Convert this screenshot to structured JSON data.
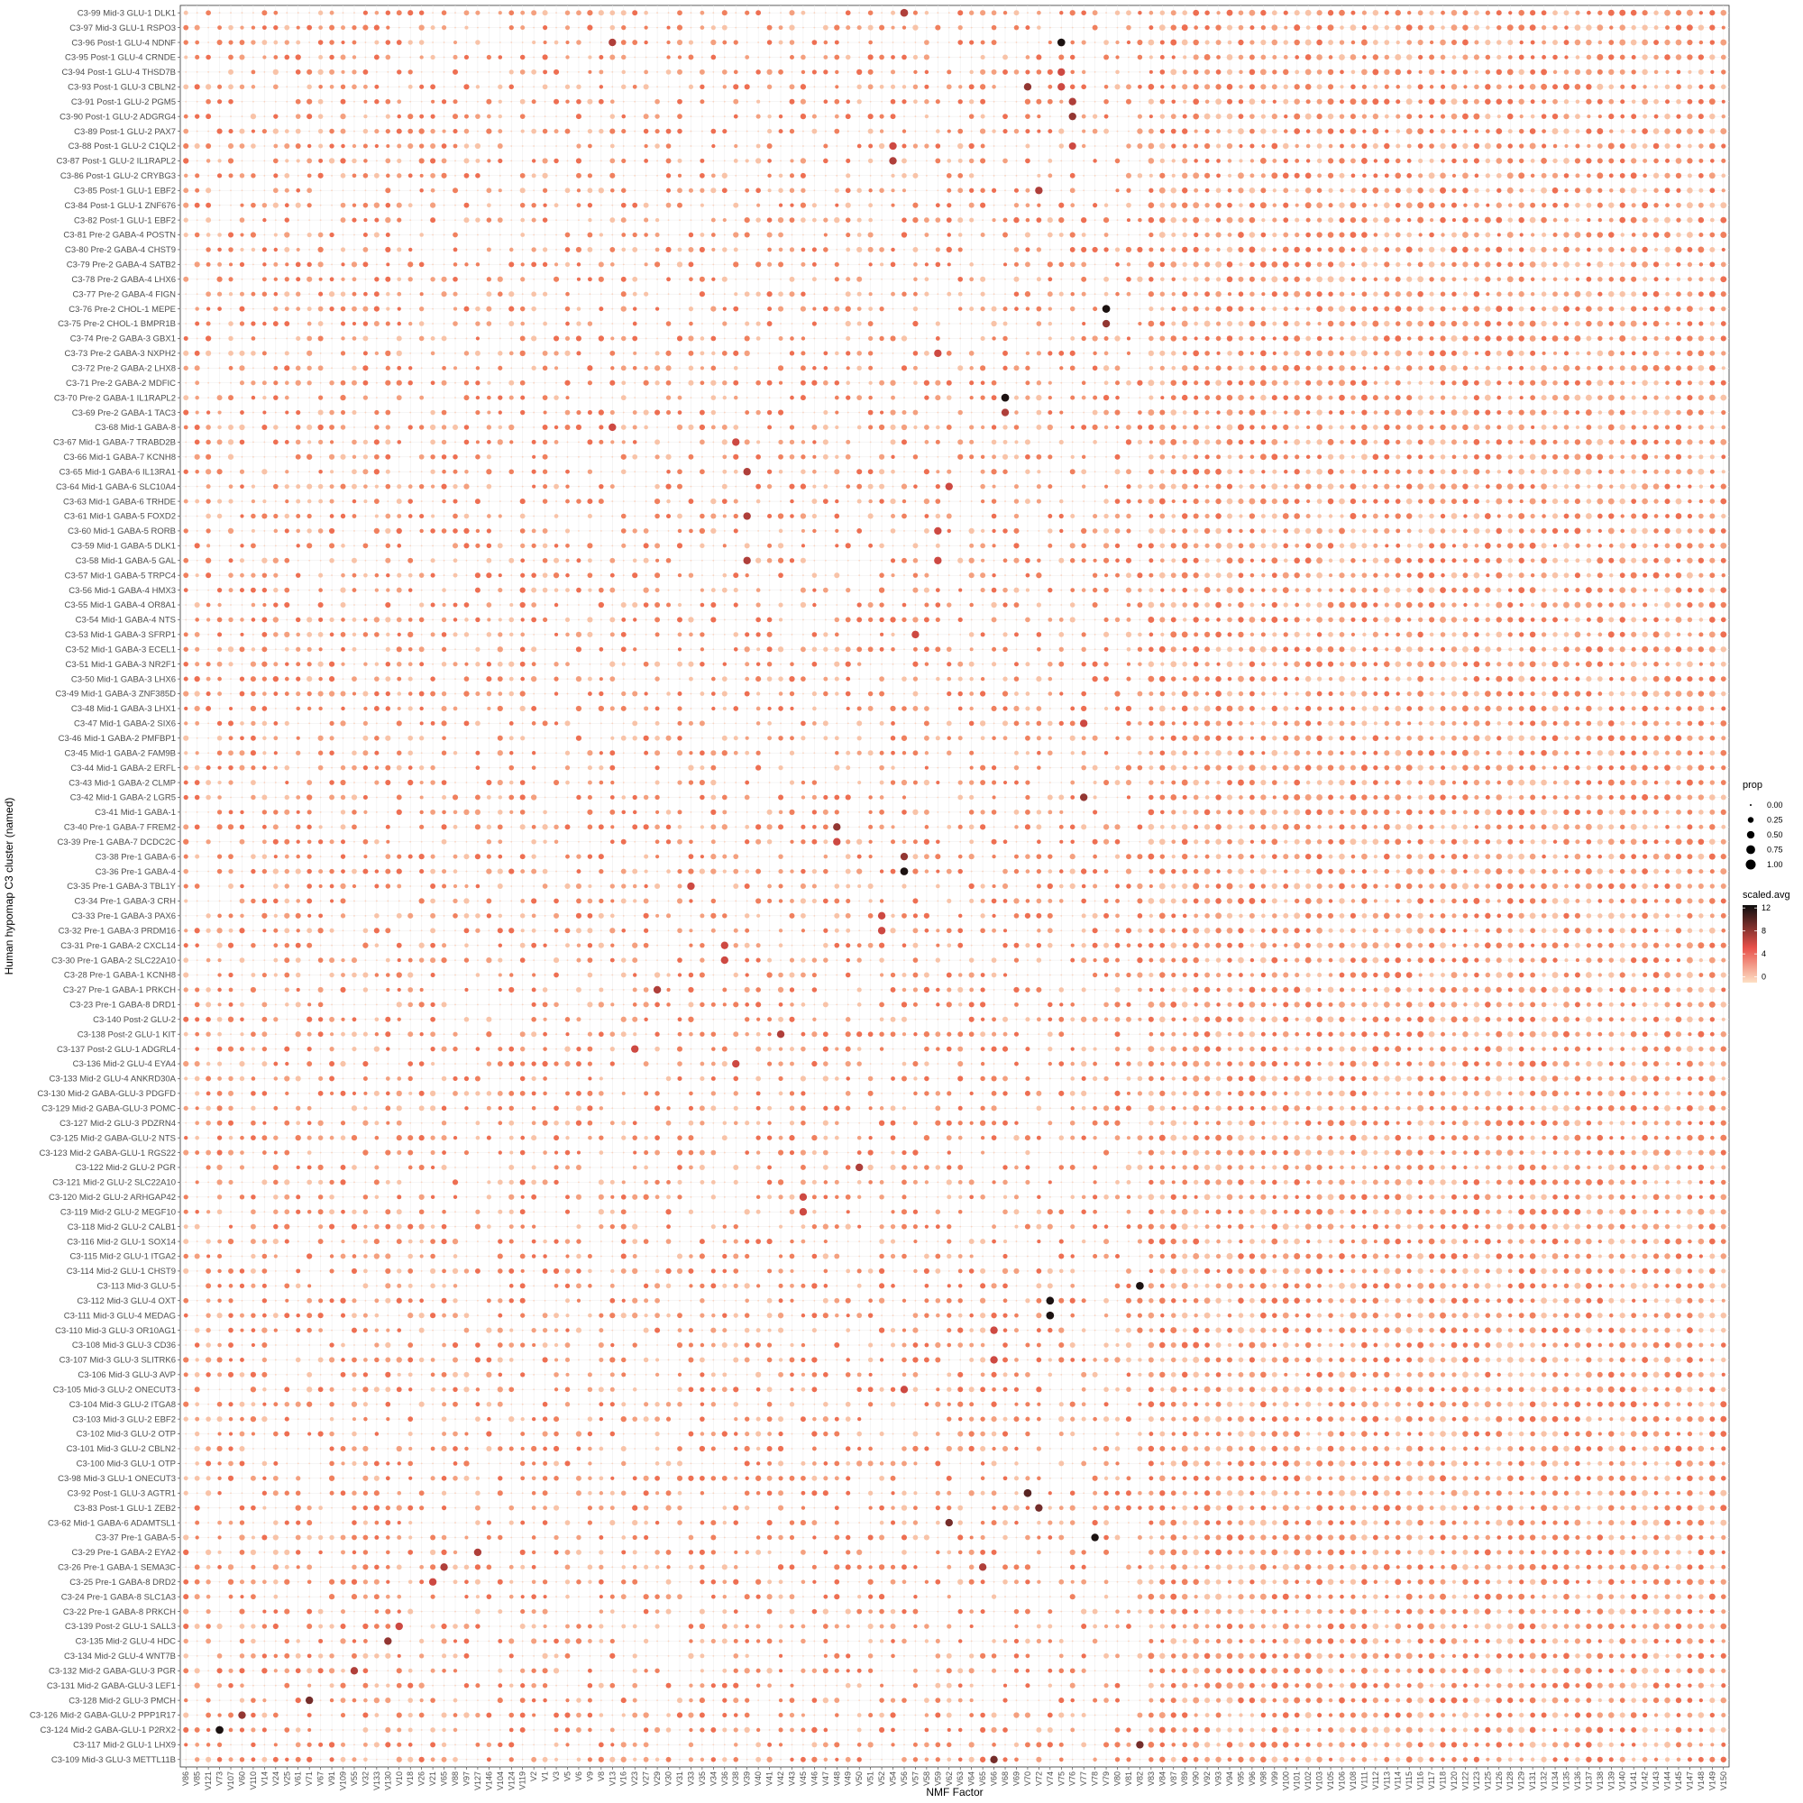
{
  "chart_data": {
    "type": "dot",
    "xlabel": "NMF Factor",
    "ylabel": "Human hypomap C3 cluster (named)",
    "x_categories": [
      "V86",
      "V85",
      "V121",
      "V73",
      "V107",
      "V60",
      "V110",
      "V14",
      "V24",
      "V25",
      "V61",
      "V71",
      "V67",
      "V91",
      "V109",
      "V55",
      "V32",
      "V133",
      "V130",
      "V10",
      "V18",
      "V26",
      "V21",
      "V65",
      "V88",
      "V97",
      "V127",
      "V146",
      "V104",
      "V124",
      "V119",
      "V2",
      "V1",
      "V3",
      "V5",
      "V6",
      "V9",
      "V8",
      "V13",
      "V16",
      "V23",
      "V27",
      "V29",
      "V30",
      "V31",
      "V33",
      "V35",
      "V34",
      "V36",
      "V38",
      "V39",
      "V40",
      "V41",
      "V42",
      "V43",
      "V45",
      "V46",
      "V47",
      "V48",
      "V49",
      "V50",
      "V51",
      "V52",
      "V54",
      "V56",
      "V57",
      "V58",
      "V59",
      "V62",
      "V63",
      "V64",
      "V65",
      "V66",
      "V68",
      "V69",
      "V70",
      "V72",
      "V74",
      "V75",
      "V76",
      "V77",
      "V78",
      "V79",
      "V80",
      "V81",
      "V82",
      "V83",
      "V84",
      "V87",
      "V89",
      "V90",
      "V92",
      "V93",
      "V94",
      "V95",
      "V96",
      "V98",
      "V99",
      "V100",
      "V101",
      "V102",
      "V103",
      "V105",
      "V106",
      "V108",
      "V111",
      "V112",
      "V113",
      "V114",
      "V115",
      "V116",
      "V117",
      "V118",
      "V120",
      "V122",
      "V123",
      "V125",
      "V126",
      "V128",
      "V129",
      "V131",
      "V132",
      "V134",
      "V135",
      "V136",
      "V137",
      "V138",
      "V139",
      "V140",
      "V141",
      "V142",
      "V143",
      "V144",
      "V145",
      "V147",
      "V148",
      "V149",
      "V150"
    ],
    "y_categories": [
      "C3-99 Mid-3 GLU-1 DLK1",
      "C3-97 Mid-3 GLU-1 RSPO3",
      "C3-96 Post-1 GLU-4 NDNF",
      "C3-95 Post-1 GLU-4 CRNDE",
      "C3-94 Post-1 GLU-4 THSD7B",
      "C3-93 Post-1 GLU-3 CBLN2",
      "C3-91 Post-1 GLU-2 PGM5",
      "C3-90 Post-1 GLU-2 ADGRG4",
      "C3-89 Post-1 GLU-2 PAX7",
      "C3-88 Post-1 GLU-2 C1QL2",
      "C3-87 Post-1 GLU-2 IL1RAPL2",
      "C3-86 Post-1 GLU-2 CRYBG3",
      "C3-85 Post-1 GLU-1 EBF2",
      "C3-84 Post-1 GLU-1 ZNF676",
      "C3-82 Post-1 GLU-1 EBF2",
      "C3-81 Pre-2 GABA-4 POSTN",
      "C3-80 Pre-2 GABA-4 CHST9",
      "C3-79 Pre-2 GABA-4 SATB2",
      "C3-78 Pre-2 GABA-4 LHX6",
      "C3-77 Pre-2 GABA-4 FIGN",
      "C3-76 Pre-2 CHOL-1 MEPE",
      "C3-75 Pre-2 CHOL-1 BMPR1B",
      "C3-74 Pre-2 GABA-3 GBX1",
      "C3-73 Pre-2 GABA-3 NXPH2",
      "C3-72 Pre-2 GABA-2 LHX8",
      "C3-71 Pre-2 GABA-2 MDFIC",
      "C3-70 Pre-2 GABA-1 IL1RAPL2",
      "C3-69 Pre-2 GABA-1 TAC3",
      "C3-68 Mid-1 GABA-8",
      "C3-67 Mid-1 GABA-7 TRABD2B",
      "C3-66 Mid-1 GABA-7 KCNH8",
      "C3-65 Mid-1 GABA-6 IL13RA1",
      "C3-64 Mid-1 GABA-6 SLC10A4",
      "C3-63 Mid-1 GABA-6 TRHDE",
      "C3-61 Mid-1 GABA-5 FOXD2",
      "C3-60 Mid-1 GABA-5 RORB",
      "C3-59 Mid-1 GABA-5 DLK1",
      "C3-58 Mid-1 GABA-5 GAL",
      "C3-57 Mid-1 GABA-5 TRPC4",
      "C3-56 Mid-1 GABA-4 HMX3",
      "C3-55 Mid-1 GABA-4 OR8A1",
      "C3-54 Mid-1 GABA-4 NTS",
      "C3-53 Mid-1 GABA-3 SFRP1",
      "C3-52 Mid-1 GABA-3 ECEL1",
      "C3-51 Mid-1 GABA-3 NR2F1",
      "C3-50 Mid-1 GABA-3 LHX6",
      "C3-49 Mid-1 GABA-3 ZNF385D",
      "C3-48 Mid-1 GABA-3 LHX1",
      "C3-47 Mid-1 GABA-2 SIX6",
      "C3-46 Mid-1 GABA-2 PMFBP1",
      "C3-45 Mid-1 GABA-2 FAM9B",
      "C3-44 Mid-1 GABA-2 ERFL",
      "C3-43 Mid-1 GABA-2 CLMP",
      "C3-42 Mid-1 GABA-2 LGR5",
      "C3-41 Mid-1 GABA-1",
      "C3-40 Pre-1 GABA-7 FREM2",
      "C3-39 Pre-1 GABA-7 DCDC2C",
      "C3-38 Pre-1 GABA-6",
      "C3-36 Pre-1 GABA-4",
      "C3-35 Pre-1 GABA-3 TBL1Y",
      "C3-34 Pre-1 GABA-3 CRH",
      "C3-33 Pre-1 GABA-3 PAX6",
      "C3-32 Pre-1 GABA-3 PRDM16",
      "C3-31 Pre-1 GABA-2 CXCL14",
      "C3-30 Pre-1 GABA-2 SLC22A10",
      "C3-28 Pre-1 GABA-1 KCNH8",
      "C3-27 Pre-1 GABA-1 PRKCH",
      "C3-23 Pre-1 GABA-8 DRD1",
      "C3-140 Post-2 GLU-2",
      "C3-138 Post-2 GLU-1 KIT",
      "C3-137 Post-2 GLU-1 ADGRL4",
      "C3-136 Mid-2 GLU-4 EYA4",
      "C3-133 Mid-2 GLU-4 ANKRD30A",
      "C3-130 Mid-2 GABA-GLU-3 PDGFD",
      "C3-129 Mid-2 GABA-GLU-3 POMC",
      "C3-127 Mid-2 GLU-3 PDZRN4",
      "C3-125 Mid-2 GABA-GLU-2 NTS",
      "C3-123 Mid-2 GABA-GLU-1 RGS22",
      "C3-122 Mid-2 GLU-2 PGR",
      "C3-121 Mid-2 GLU-2 SLC22A10",
      "C3-120 Mid-2 GLU-2 ARHGAP42",
      "C3-119 Mid-2 GLU-2 MEGF10",
      "C3-118 Mid-2 GLU-2 CALB1",
      "C3-116 Mid-2 GLU-1 SOX14",
      "C3-115 Mid-2 GLU-1 ITGA2",
      "C3-114 Mid-2 GLU-1 CHST9",
      "C3-113 Mid-3 GLU-5",
      "C3-112 Mid-3 GLU-4 OXT",
      "C3-111 Mid-3 GLU-4 MEDAG",
      "C3-110 Mid-3 GLU-3 OR10AG1",
      "C3-108 Mid-3 GLU-3 CD36",
      "C3-107 Mid-3 GLU-3 SLITRK6",
      "C3-106 Mid-3 GLU-3 AVP",
      "C3-105 Mid-3 GLU-2 ONECUT3",
      "C3-104 Mid-3 GLU-2 ITGA8",
      "C3-103 Mid-3 GLU-2 EBF2",
      "C3-102 Mid-3 GLU-2 OTP",
      "C3-101 Mid-3 GLU-2 CBLN2",
      "C3-100 Mid-3 GLU-1 OTP",
      "C3-98 Mid-3 GLU-1 ONECUT3",
      "C3-92 Post-1 GLU-3 AGTR1",
      "C3-83 Post-1 GLU-1 ZEB2",
      "C3-62 Mid-1 GABA-6 ADAMTSL1",
      "C3-37 Pre-1 GABA-5",
      "C3-29 Pre-1 GABA-2 EYA2",
      "C3-26 Pre-1 GABA-1 SEMA3C",
      "C3-25 Pre-1 GABA-8 DRD2",
      "C3-24 Pre-1 GABA-8 SLC1A3",
      "C3-22 Pre-1 GABA-8 PRKCH",
      "C3-139 Post-2 GLU-1 SALL3",
      "C3-135 Mid-2 GLU-4 HDC",
      "C3-134 Mid-2 GLU-4 WNT7B",
      "C3-132 Mid-2 GABA-GLU-3 PGR",
      "C3-131 Mid-2 GABA-GLU-3 LEF1",
      "C3-128 Mid-2 GLU-3 PMCH",
      "C3-126 Mid-2 GABA-GLU-2 PPP1R17",
      "C3-124 Mid-2 GABA-GLU-1 P2RX2",
      "C3-117 Mid-2 GLU-1 LHX9",
      "C3-109 Mid-3 GLU-3 METTL11B"
    ],
    "highlights": [
      {
        "row": "C3-99 Mid-3 GLU-1 DLK1",
        "factor": "V56",
        "scaled_avg": 7,
        "prop": 0.55
      },
      {
        "row": "C3-96 Post-1 GLU-4 NDNF",
        "factor": "V13",
        "scaled_avg": 7,
        "prop": 0.5
      },
      {
        "row": "C3-96 Post-1 GLU-4 NDNF",
        "factor": "V75",
        "scaled_avg": 12,
        "prop": 0.55
      },
      {
        "row": "C3-94 Post-1 GLU-4 THSD7B",
        "factor": "V75",
        "scaled_avg": 6,
        "prop": 0.5
      },
      {
        "row": "C3-93 Post-1 GLU-3 CBLN2",
        "factor": "V70",
        "scaled_avg": 8,
        "prop": 0.5
      },
      {
        "row": "C3-93 Post-1 GLU-3 CBLN2",
        "factor": "V75",
        "scaled_avg": 6,
        "prop": 0.5
      },
      {
        "row": "C3-91 Post-1 GLU-2 PGM5",
        "factor": "V76",
        "scaled_avg": 7,
        "prop": 0.5
      },
      {
        "row": "C3-90 Post-1 GLU-2 ADGRG4",
        "factor": "V76",
        "scaled_avg": 8,
        "prop": 0.5
      },
      {
        "row": "C3-88 Post-1 GLU-2 C1QL2",
        "factor": "V54",
        "scaled_avg": 6,
        "prop": 0.5
      },
      {
        "row": "C3-88 Post-1 GLU-2 C1QL2",
        "factor": "V76",
        "scaled_avg": 6,
        "prop": 0.45
      },
      {
        "row": "C3-87 Post-1 GLU-2 IL1RAPL2",
        "factor": "V54",
        "scaled_avg": 7,
        "prop": 0.5
      },
      {
        "row": "C3-85 Post-1 GLU-1 EBF2",
        "factor": "V72",
        "scaled_avg": 7,
        "prop": 0.5
      },
      {
        "row": "C3-76 Pre-2 CHOL-1 MEPE",
        "factor": "V79",
        "scaled_avg": 12,
        "prop": 0.55
      },
      {
        "row": "C3-75 Pre-2 CHOL-1 BMPR1B",
        "factor": "V79",
        "scaled_avg": 8,
        "prop": 0.5
      },
      {
        "row": "C3-73 Pre-2 GABA-3 NXPH2",
        "factor": "V59",
        "scaled_avg": 6,
        "prop": 0.5
      },
      {
        "row": "C3-70 Pre-2 GABA-1 IL1RAPL2",
        "factor": "V68",
        "scaled_avg": 12,
        "prop": 0.55
      },
      {
        "row": "C3-69 Pre-2 GABA-1 TAC3",
        "factor": "V68",
        "scaled_avg": 7,
        "prop": 0.5
      },
      {
        "row": "C3-68 Mid-1 GABA-8",
        "factor": "V13",
        "scaled_avg": 6,
        "prop": 0.5
      },
      {
        "row": "C3-67 Mid-1 GABA-7 TRABD2B",
        "factor": "V38",
        "scaled_avg": 6,
        "prop": 0.5
      },
      {
        "row": "C3-65 Mid-1 GABA-6 IL13RA1",
        "factor": "V39",
        "scaled_avg": 7,
        "prop": 0.5
      },
      {
        "row": "C3-64 Mid-1 GABA-6 SLC10A4",
        "factor": "V62",
        "scaled_avg": 6,
        "prop": 0.5
      },
      {
        "row": "C3-61 Mid-1 GABA-5 FOXD2",
        "factor": "V39",
        "scaled_avg": 7,
        "prop": 0.5
      },
      {
        "row": "C3-60 Mid-1 GABA-5 RORB",
        "factor": "V59",
        "scaled_avg": 6,
        "prop": 0.5
      },
      {
        "row": "C3-58 Mid-1 GABA-5 GAL",
        "factor": "V39",
        "scaled_avg": 7,
        "prop": 0.5
      },
      {
        "row": "C3-58 Mid-1 GABA-5 GAL",
        "factor": "V59",
        "scaled_avg": 6,
        "prop": 0.5
      },
      {
        "row": "C3-53 Mid-1 GABA-3 SFRP1",
        "factor": "V57",
        "scaled_avg": 6,
        "prop": 0.5
      },
      {
        "row": "C3-47 Mid-1 GABA-2 SIX6",
        "factor": "V77",
        "scaled_avg": 6,
        "prop": 0.5
      },
      {
        "row": "C3-42 Mid-1 GABA-2 LGR5",
        "factor": "V77",
        "scaled_avg": 8,
        "prop": 0.5
      },
      {
        "row": "C3-40 Pre-1 GABA-7 FREM2",
        "factor": "V48",
        "scaled_avg": 8,
        "prop": 0.5
      },
      {
        "row": "C3-39 Pre-1 GABA-7 DCDC2C",
        "factor": "V48",
        "scaled_avg": 6,
        "prop": 0.5
      },
      {
        "row": "C3-38 Pre-1 GABA-6",
        "factor": "V56",
        "scaled_avg": 8,
        "prop": 0.5
      },
      {
        "row": "C3-36 Pre-1 GABA-4",
        "factor": "V56",
        "scaled_avg": 12,
        "prop": 0.55
      },
      {
        "row": "C3-35 Pre-1 GABA-3 TBL1Y",
        "factor": "V33",
        "scaled_avg": 6,
        "prop": 0.5
      },
      {
        "row": "C3-33 Pre-1 GABA-3 PAX6",
        "factor": "V52",
        "scaled_avg": 6,
        "prop": 0.5
      },
      {
        "row": "C3-32 Pre-1 GABA-3 PRDM16",
        "factor": "V52",
        "scaled_avg": 6,
        "prop": 0.5
      },
      {
        "row": "C3-31 Pre-1 GABA-2 CXCL14",
        "factor": "V36",
        "scaled_avg": 6,
        "prop": 0.5
      },
      {
        "row": "C3-30 Pre-1 GABA-2 SLC22A10",
        "factor": "V36",
        "scaled_avg": 6,
        "prop": 0.5
      },
      {
        "row": "C3-27 Pre-1 GABA-1 PRKCH",
        "factor": "V29",
        "scaled_avg": 7,
        "prop": 0.5
      },
      {
        "row": "C3-138 Post-2 GLU-1 KIT",
        "factor": "V42",
        "scaled_avg": 7,
        "prop": 0.5
      },
      {
        "row": "C3-137 Post-2 GLU-1 ADGRL4",
        "factor": "V23",
        "scaled_avg": 6,
        "prop": 0.5
      },
      {
        "row": "C3-136 Mid-2 GLU-4 EYA4",
        "factor": "V38",
        "scaled_avg": 6,
        "prop": 0.5
      },
      {
        "row": "C3-122 Mid-2 GLU-2 PGR",
        "factor": "V50",
        "scaled_avg": 7,
        "prop": 0.5
      },
      {
        "row": "C3-120 Mid-2 GLU-2 ARHGAP42",
        "factor": "V45",
        "scaled_avg": 6,
        "prop": 0.5
      },
      {
        "row": "C3-119 Mid-2 GLU-2 MEGF10",
        "factor": "V45",
        "scaled_avg": 6,
        "prop": 0.5
      },
      {
        "row": "C3-113 Mid-3 GLU-5",
        "factor": "V82",
        "scaled_avg": 12,
        "prop": 0.55
      },
      {
        "row": "C3-112 Mid-3 GLU-4 OXT",
        "factor": "V74",
        "scaled_avg": 12,
        "prop": 0.55
      },
      {
        "row": "C3-111 Mid-3 GLU-4 MEDAG",
        "factor": "V74",
        "scaled_avg": 12,
        "prop": 0.55
      },
      {
        "row": "C3-110 Mid-3 GLU-3 OR10AG1",
        "factor": "V66",
        "scaled_avg": 6,
        "prop": 0.5
      },
      {
        "row": "C3-107 Mid-3 GLU-3 SLITRK6",
        "factor": "V66",
        "scaled_avg": 6,
        "prop": 0.5
      },
      {
        "row": "C3-105 Mid-3 GLU-2 ONECUT3",
        "factor": "V56",
        "scaled_avg": 6,
        "prop": 0.5
      },
      {
        "row": "C3-92 Post-1 GLU-3 AGTR1",
        "factor": "V70",
        "scaled_avg": 10,
        "prop": 0.55
      },
      {
        "row": "C3-83 Post-1 GLU-1 ZEB2",
        "factor": "V72",
        "scaled_avg": 9,
        "prop": 0.5
      },
      {
        "row": "C3-62 Mid-1 GABA-6 ADAMTSL1",
        "factor": "V62",
        "scaled_avg": 9,
        "prop": 0.5
      },
      {
        "row": "C3-37 Pre-1 GABA-5",
        "factor": "V78",
        "scaled_avg": 12,
        "prop": 0.5
      },
      {
        "row": "C3-29 Pre-1 GABA-2 EYA2",
        "factor": "V127",
        "scaled_avg": 7,
        "prop": 0.5
      },
      {
        "row": "C3-26 Pre-1 GABA-1 SEMA3C",
        "factor": "V65",
        "scaled_avg": 7,
        "prop": 0.5
      },
      {
        "row": "C3-25 Pre-1 GABA-8 DRD2",
        "factor": "V21",
        "scaled_avg": 6,
        "prop": 0.5
      },
      {
        "row": "C3-139 Post-2 GLU-1 SALL3",
        "factor": "V10",
        "scaled_avg": 6,
        "prop": 0.5
      },
      {
        "row": "C3-135 Mid-2 GLU-4 HDC",
        "factor": "V130",
        "scaled_avg": 8,
        "prop": 0.5
      },
      {
        "row": "C3-132 Mid-2 GABA-GLU-3 PGR",
        "factor": "V55",
        "scaled_avg": 7,
        "prop": 0.5
      },
      {
        "row": "C3-128 Mid-2 GLU-3 PMCH",
        "factor": "V71",
        "scaled_avg": 9,
        "prop": 0.5
      },
      {
        "row": "C3-126 Mid-2 GABA-GLU-2 PPP1R17",
        "factor": "V60",
        "scaled_avg": 8,
        "prop": 0.5
      },
      {
        "row": "C3-124 Mid-2 GABA-GLU-1 P2RX2",
        "factor": "V73",
        "scaled_avg": 12,
        "prop": 0.55
      },
      {
        "row": "C3-117 Mid-2 GLU-1 LHX9",
        "factor": "V82",
        "scaled_avg": 9,
        "prop": 0.5
      },
      {
        "row": "C3-109 Mid-3 GLU-3 METTL11B",
        "factor": "V66",
        "scaled_avg": 9,
        "prop": 0.5
      }
    ],
    "size_legend": {
      "title": "prop",
      "breaks": [
        0.0,
        0.25,
        0.5,
        0.75,
        1.0
      ],
      "labels": [
        "0.00",
        "0.25",
        "0.50",
        "0.75",
        "1.00"
      ]
    },
    "color_legend": {
      "title": "scaled.avg",
      "range": [
        -1,
        12.5
      ],
      "breaks": [
        0,
        4,
        8,
        12
      ],
      "labels": [
        "0",
        "4",
        "8",
        "12"
      ],
      "low_color": "#fde0c5",
      "mid_color": "#e8514a",
      "high_color": "#0d0d0d"
    },
    "background_dot_colors": [
      "#f0805e",
      "#f4a07f",
      "#f8c3a8",
      "#ee6f52"
    ]
  }
}
